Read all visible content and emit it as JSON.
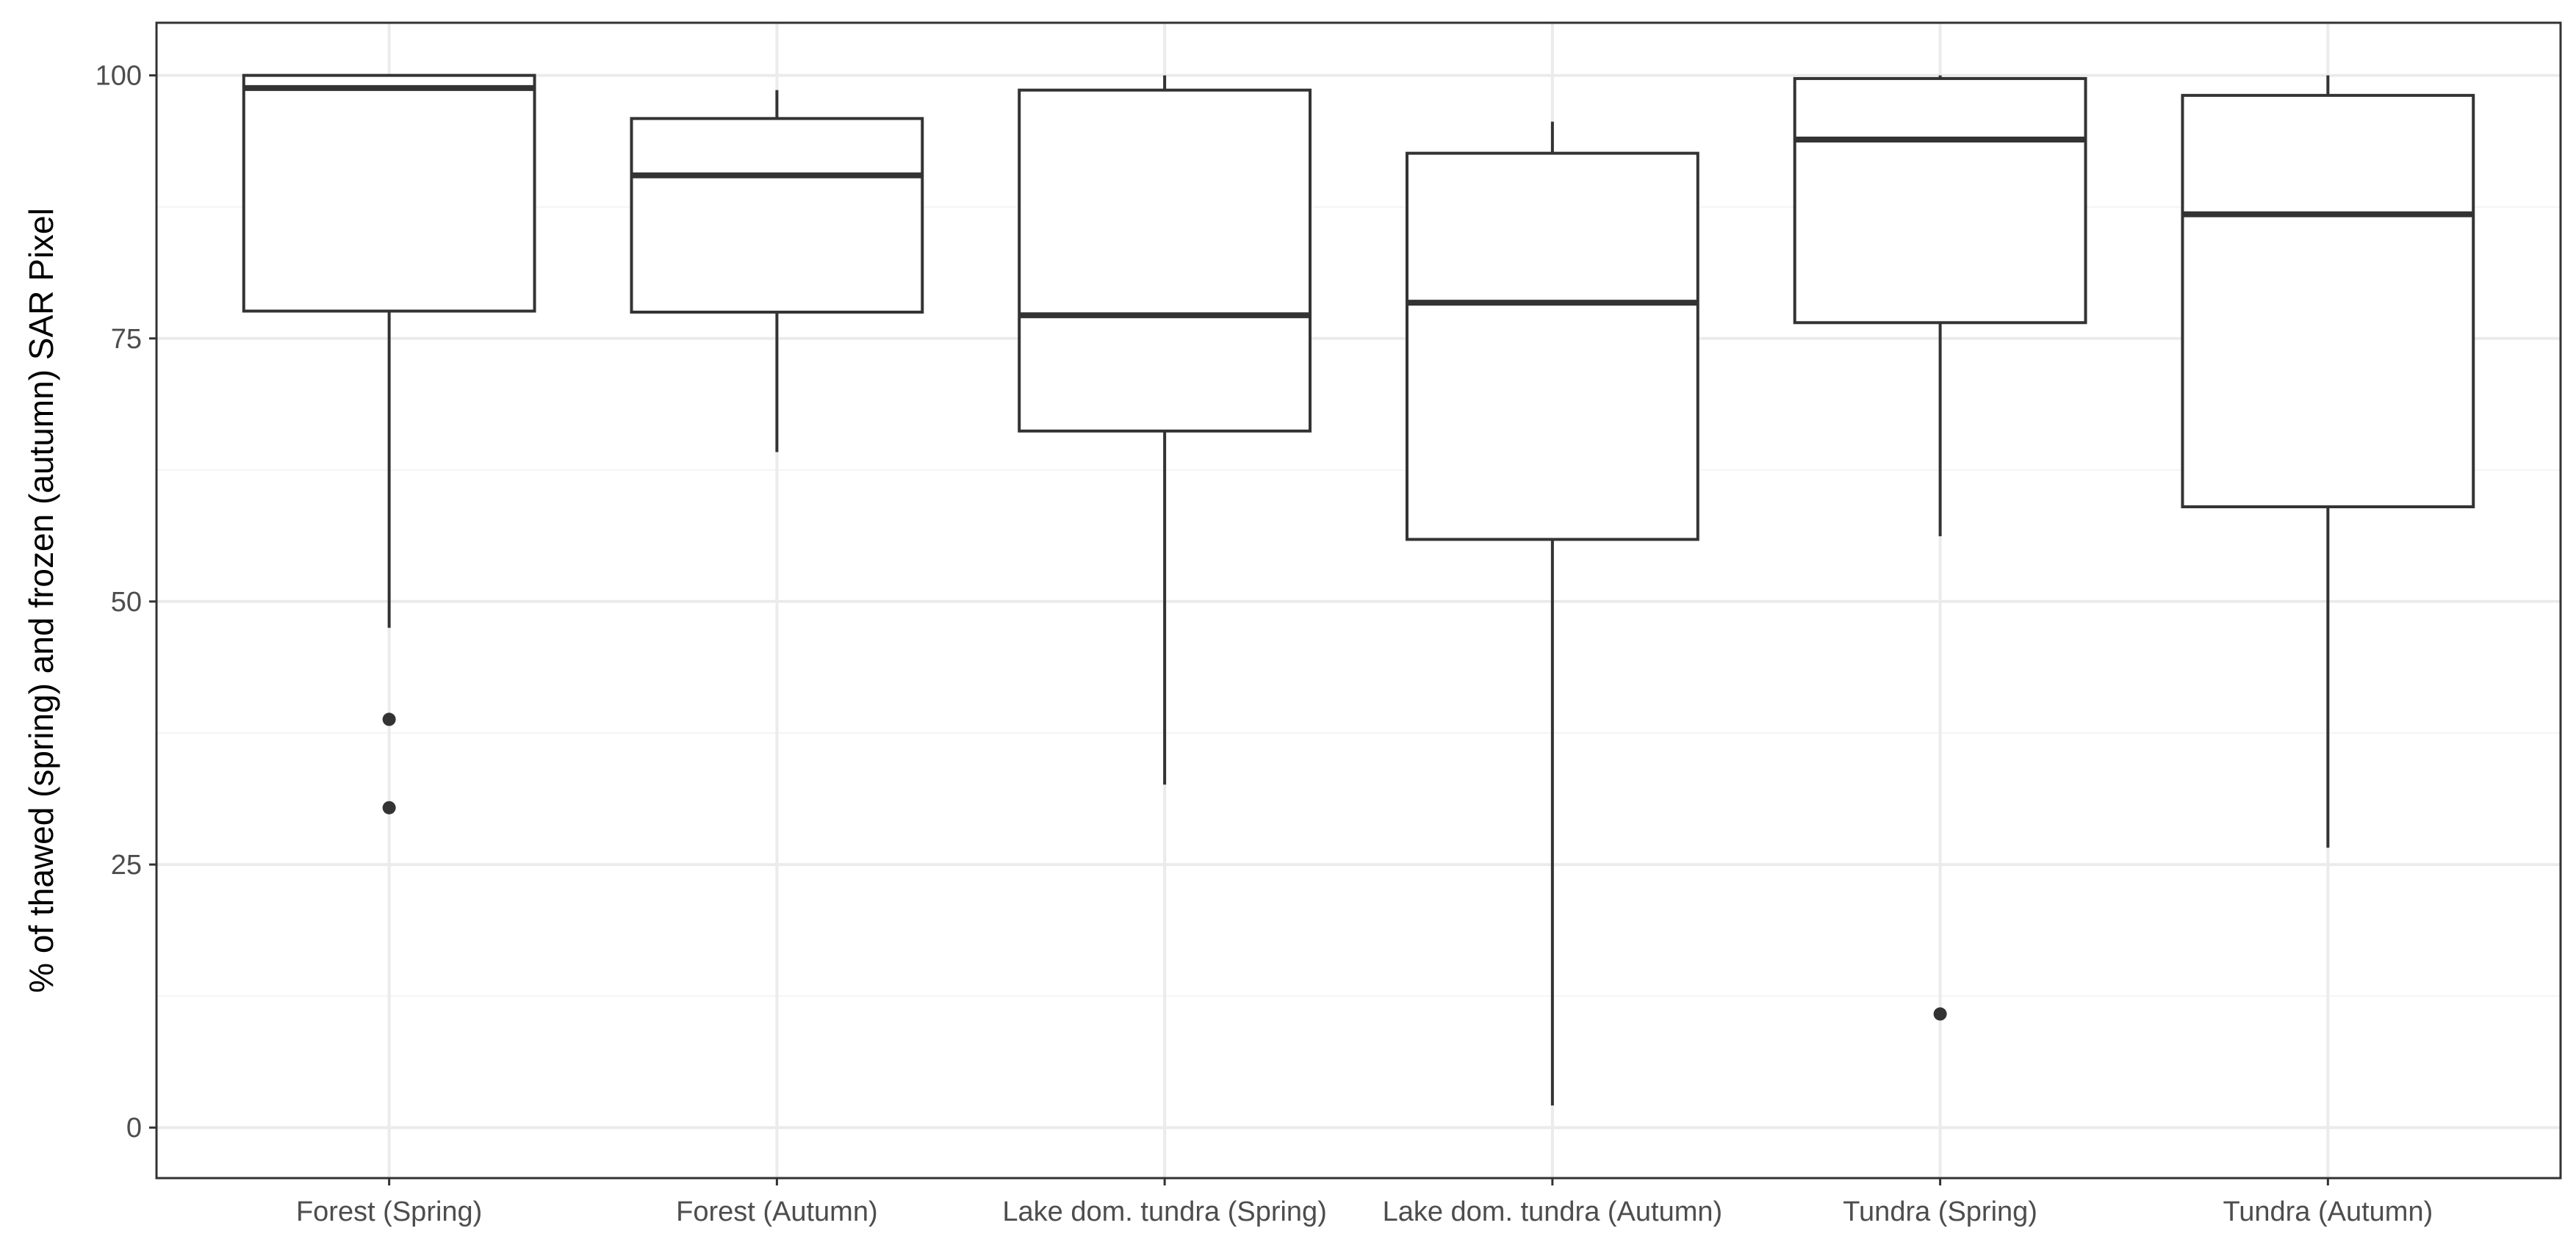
{
  "chart_data": {
    "type": "box",
    "categories": [
      "Forest (Spring)",
      "Forest (Autumn)",
      "Lake dom. tundra (Spring)",
      "Lake dom. tundra (Autumn)",
      "Tundra (Spring)",
      "Tundra (Autumn)"
    ],
    "boxes": [
      {
        "category": "Forest (Spring)",
        "whisker_low": 47.5,
        "q1": 77.6,
        "median": 98.8,
        "q3": 100.0,
        "whisker_high": 100.0,
        "outliers": [
          38.8,
          30.4
        ]
      },
      {
        "category": "Forest (Autumn)",
        "whisker_low": 64.2,
        "q1": 77.5,
        "median": 90.5,
        "q3": 95.9,
        "whisker_high": 98.6,
        "outliers": []
      },
      {
        "category": "Lake dom. tundra (Spring)",
        "whisker_low": 32.6,
        "q1": 66.2,
        "median": 77.2,
        "q3": 98.6,
        "whisker_high": 100.0,
        "outliers": []
      },
      {
        "category": "Lake dom. tundra (Autumn)",
        "whisker_low": 2.1,
        "q1": 55.9,
        "median": 78.4,
        "q3": 92.6,
        "whisker_high": 95.6,
        "outliers": []
      },
      {
        "category": "Tundra (Spring)",
        "whisker_low": 56.2,
        "q1": 76.5,
        "median": 93.9,
        "q3": 99.7,
        "whisker_high": 100.0,
        "outliers": [
          10.8
        ]
      },
      {
        "category": "Tundra (Autumn)",
        "whisker_low": 26.6,
        "q1": 59.0,
        "median": 86.8,
        "q3": 98.1,
        "whisker_high": 100.0,
        "outliers": []
      }
    ],
    "title": "",
    "xlabel": "",
    "ylabel": "% of thawed (spring) and frozen (autumn) SAR Pixel",
    "ylim": [
      -4.8,
      105
    ],
    "yticks": [
      0,
      25,
      50,
      75,
      100
    ],
    "ytick_labels": [
      "0",
      "25",
      "50",
      "75",
      "100"
    ],
    "grid": true,
    "legend": "none",
    "colors": {
      "box_stroke": "#333333",
      "box_fill": "#ffffff",
      "grid_major": "#ebebeb",
      "grid_minor": "#f4f4f4",
      "panel_border": "#333333",
      "tick_text": "#4d4d4d",
      "title_text": "#000000"
    }
  }
}
